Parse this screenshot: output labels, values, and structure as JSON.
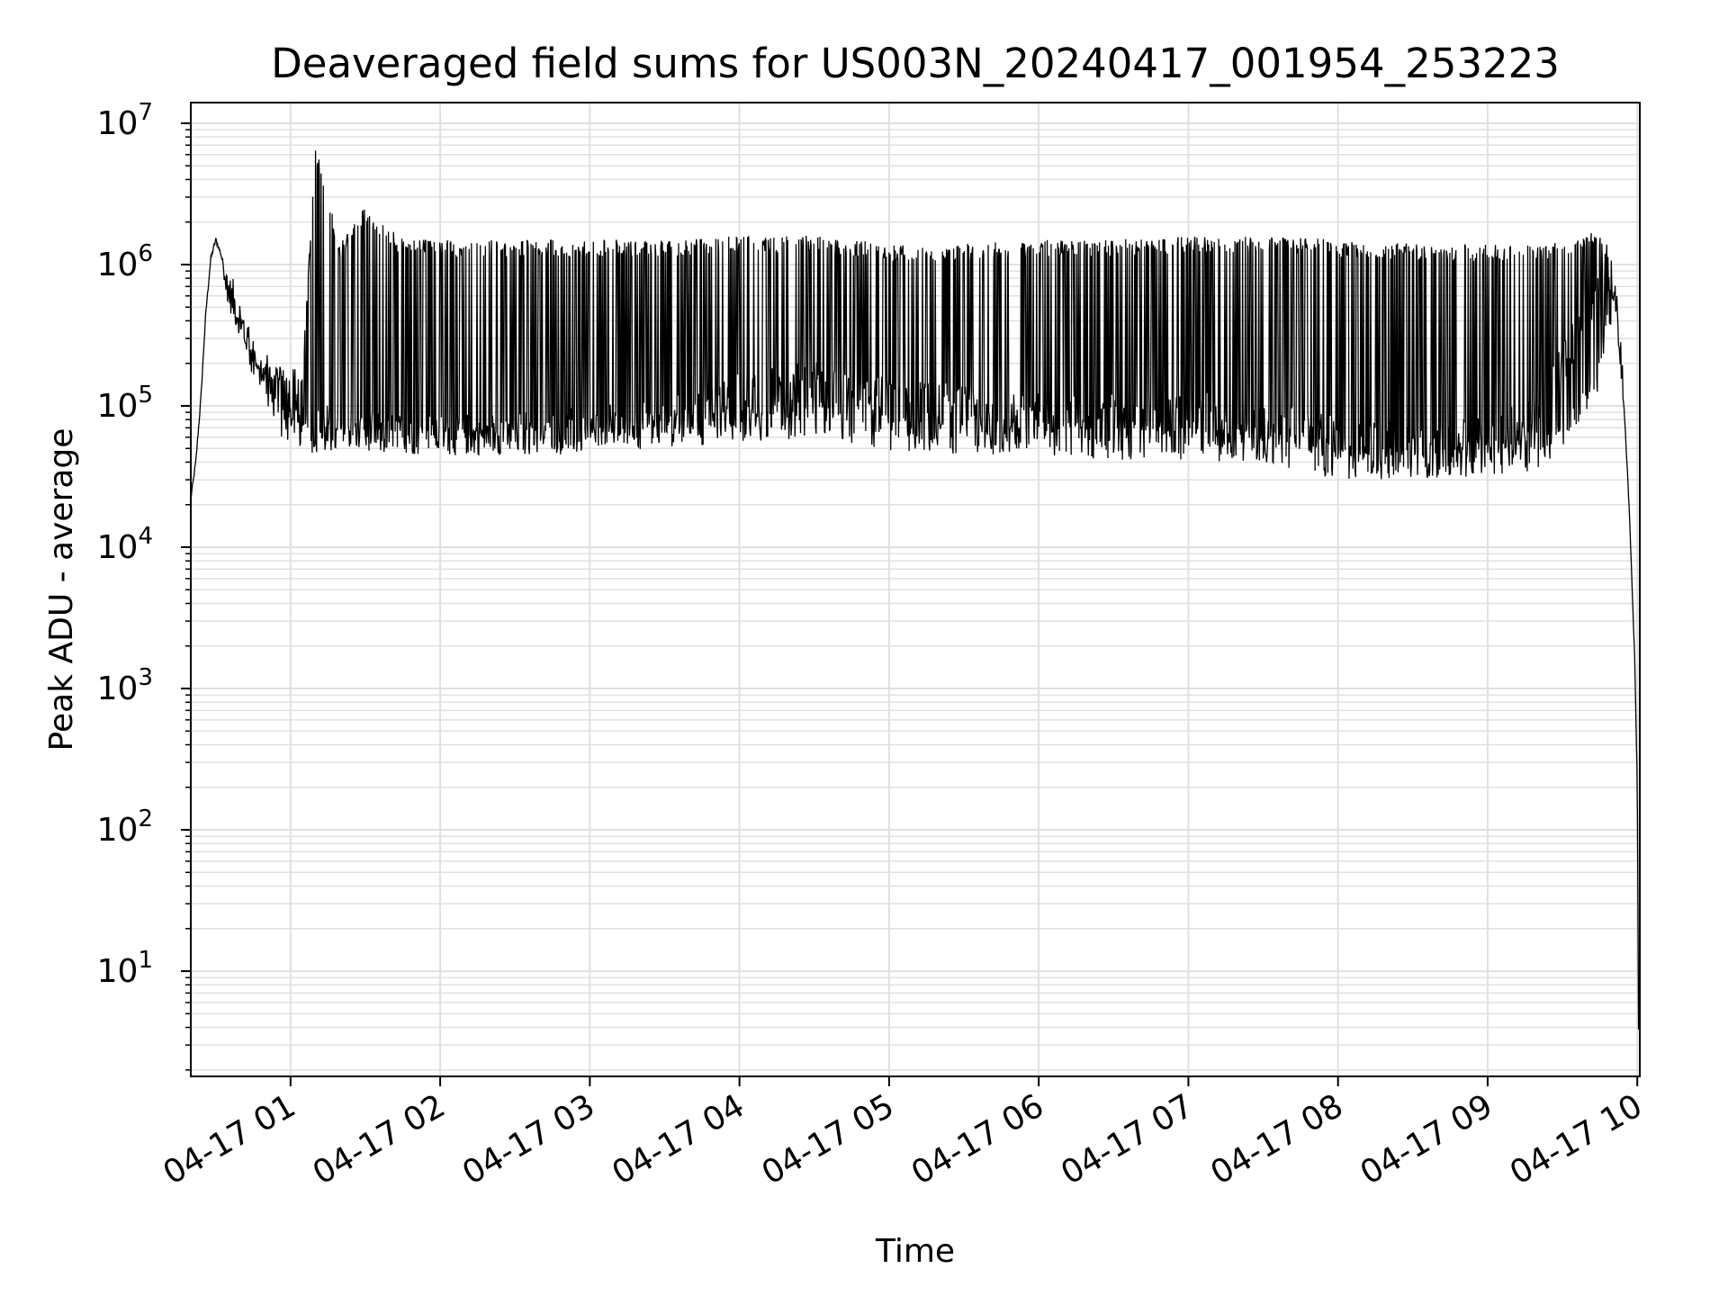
{
  "chart_data": {
    "type": "line",
    "title": "Deaveraged field sums for US003N_20240417_001954_253223",
    "xlabel": "Time",
    "ylabel": "Peak ADU - average",
    "yscale": "log",
    "ylim": [
      1.8,
      14000000
    ],
    "xlim": [
      "2024-04-17T00:20:00",
      "2024-04-17T10:01:00"
    ],
    "grid": true,
    "line_color": "#000000",
    "grid_color": "#e0e0e0",
    "x_ticks": [
      {
        "value": "2024-04-17T01:00:00",
        "label": "04-17 01"
      },
      {
        "value": "2024-04-17T02:00:00",
        "label": "04-17 02"
      },
      {
        "value": "2024-04-17T03:00:00",
        "label": "04-17 03"
      },
      {
        "value": "2024-04-17T04:00:00",
        "label": "04-17 04"
      },
      {
        "value": "2024-04-17T05:00:00",
        "label": "04-17 05"
      },
      {
        "value": "2024-04-17T06:00:00",
        "label": "04-17 06"
      },
      {
        "value": "2024-04-17T07:00:00",
        "label": "04-17 07"
      },
      {
        "value": "2024-04-17T08:00:00",
        "label": "04-17 08"
      },
      {
        "value": "2024-04-17T09:00:00",
        "label": "04-17 09"
      },
      {
        "value": "2024-04-17T10:00:00",
        "label": "04-17 10"
      }
    ],
    "y_ticks": [
      {
        "value": 10,
        "base": "10",
        "exp": "1"
      },
      {
        "value": 100,
        "base": "10",
        "exp": "2"
      },
      {
        "value": 1000,
        "base": "10",
        "exp": "3"
      },
      {
        "value": 10000,
        "base": "10",
        "exp": "4"
      },
      {
        "value": 100000,
        "base": "10",
        "exp": "5"
      },
      {
        "value": 1000000,
        "base": "10",
        "exp": "6"
      },
      {
        "value": 10000000,
        "base": "10",
        "exp": "7"
      }
    ],
    "series": [
      {
        "x": [
          "2024-04-17T00:20:00",
          "2024-04-17T00:22:00",
          "2024-04-17T00:24:00",
          "2024-04-17T00:26:00",
          "2024-04-17T00:28:00",
          "2024-04-17T00:30:00",
          "2024-04-17T00:32:00",
          "2024-04-17T00:35:00",
          "2024-04-17T00:40:00",
          "2024-04-17T00:45:00",
          "2024-04-17T00:50:00",
          "2024-04-17T00:55:00",
          "2024-04-17T01:00:00",
          "2024-04-17T01:05:00",
          "2024-04-17T01:10:00",
          "2024-04-17T01:20:00",
          "2024-04-17T01:30:00",
          "2024-04-17T01:45:00",
          "2024-04-17T02:00:00",
          "2024-04-17T02:30:00",
          "2024-04-17T03:00:00",
          "2024-04-17T03:30:00",
          "2024-04-17T04:00:00",
          "2024-04-17T04:30:00",
          "2024-04-17T04:50:00",
          "2024-04-17T05:00:00",
          "2024-04-17T05:30:00",
          "2024-04-17T06:00:00",
          "2024-04-17T06:30:00",
          "2024-04-17T07:00:00",
          "2024-04-17T07:30:00",
          "2024-04-17T08:00:00",
          "2024-04-17T08:30:00",
          "2024-04-17T09:00:00",
          "2024-04-17T09:20:00",
          "2024-04-17T09:35:00",
          "2024-04-17T09:45:00",
          "2024-04-17T09:48:00",
          "2024-04-17T09:52:00",
          "2024-04-17T09:55:00",
          "2024-04-17T09:57:00",
          "2024-04-17T09:59:00",
          "2024-04-17T10:00:00",
          "2024-04-17T10:00:30"
        ],
        "y": [
          22000,
          40000,
          110000,
          450000,
          1100000,
          1500000,
          1200000,
          700000,
          400000,
          250000,
          170000,
          130000,
          95000,
          80000,
          75000,
          70000,
          68000,
          65000,
          62000,
          65000,
          70000,
          80000,
          120000,
          150000,
          130000,
          110000,
          100000,
          90000,
          85000,
          90000,
          80000,
          60000,
          55000,
          60000,
          90000,
          300000,
          700000,
          1100000,
          500000,
          80000,
          15000,
          1500,
          200,
          3.8
        ],
        "envelope_top": [
          22000,
          40000,
          110000,
          450000,
          1100000,
          1500000,
          1200000,
          700000,
          400000,
          250000,
          200000,
          200000,
          180000,
          200000,
          7000000,
          1400000,
          2700000,
          1500000,
          1500000,
          1500000,
          1500000,
          1500000,
          1600000,
          1600000,
          1500000,
          1400000,
          1400000,
          1500000,
          1500000,
          1600000,
          1600000,
          1500000,
          1400000,
          1400000,
          1400000,
          1600000,
          1800000,
          1200000,
          500000,
          80000,
          15000,
          1500,
          200,
          3.8
        ],
        "envelope_bottom": [
          22000,
          40000,
          110000,
          450000,
          1100000,
          1500000,
          1200000,
          500000,
          300000,
          150000,
          100000,
          60000,
          55000,
          50000,
          45000,
          45000,
          45000,
          45000,
          45000,
          45000,
          45000,
          50000,
          55000,
          60000,
          50000,
          48000,
          45000,
          45000,
          40000,
          40000,
          40000,
          30000,
          30000,
          32000,
          35000,
          60000,
          120000,
          400000,
          300000,
          80000,
          15000,
          1500,
          200,
          3.8
        ]
      }
    ]
  }
}
